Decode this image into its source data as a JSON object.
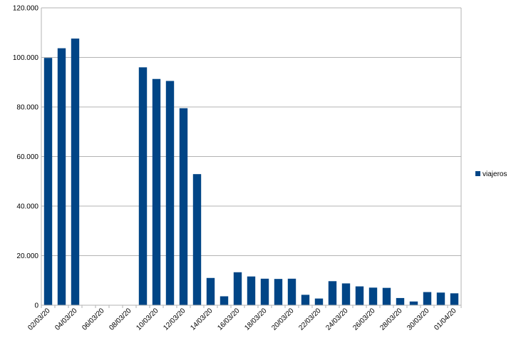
{
  "chart_data": {
    "type": "bar",
    "categories": [
      "02/03/20",
      null,
      "04/03/20",
      null,
      "06/03/20",
      null,
      "08/03/20",
      null,
      "10/03/20",
      null,
      "12/03/20",
      null,
      "14/03/20",
      null,
      "16/03/20",
      null,
      "18/03/20",
      null,
      "20/03/20",
      null,
      "22/03/20",
      null,
      "24/03/20",
      null,
      "26/03/20",
      null,
      "28/03/20",
      null,
      "30/03/20",
      null,
      "01/04/20"
    ],
    "series": [
      {
        "name": "viajeros",
        "color": "#004586",
        "values": [
          99800,
          103700,
          107600,
          null,
          null,
          null,
          null,
          96000,
          91300,
          90500,
          79500,
          52900,
          11000,
          3600,
          13300,
          11600,
          10700,
          10600,
          10700,
          4200,
          2700,
          9700,
          8800,
          7600,
          7100,
          7000,
          2900,
          1500,
          5300,
          5100,
          4800
        ]
      }
    ],
    "ylim": [
      0,
      120000
    ],
    "yticks": [
      0,
      {
        "value": 20000,
        "label": "20.000"
      },
      {
        "value": 40000,
        "label": "40.000"
      },
      {
        "value": 60000,
        "label": "60.000"
      },
      {
        "value": 80000,
        "label": "80.000"
      },
      {
        "value": 100000,
        "label": "100.000"
      },
      {
        "value": 120000,
        "label": "120.000"
      }
    ],
    "grid": true,
    "legend": "right"
  }
}
